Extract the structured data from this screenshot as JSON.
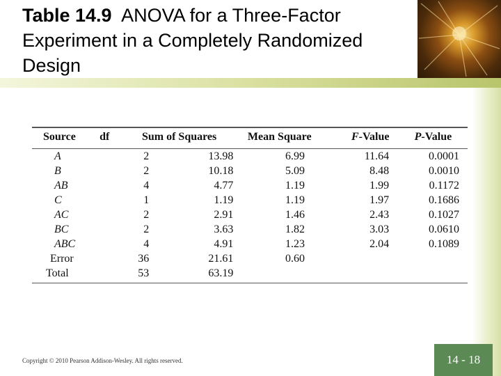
{
  "slide": {
    "title_bold": "Table 14.9",
    "title_rest": "ANOVA for a Three-Factor Experiment in a Completely Randomized Design",
    "copyright": "Copyright © 2010 Pearson Addison-Wesley. All rights reserved.",
    "page_number": "14 - 18"
  },
  "table": {
    "headers": {
      "source": "Source",
      "df": "df",
      "ss": "Sum of Squares",
      "ms": "Mean Square",
      "f_letter": "F",
      "f_rest": "-Value",
      "p_letter": "P",
      "p_rest": "-Value"
    },
    "rows": [
      {
        "source": "A",
        "df": "2",
        "ss": "13.98",
        "ms": "6.99",
        "f": "11.64",
        "p": "0.0001"
      },
      {
        "source": "B",
        "df": "2",
        "ss": "10.18",
        "ms": "5.09",
        "f": "8.48",
        "p": "0.0010"
      },
      {
        "source": "AB",
        "df": "4",
        "ss": "4.77",
        "ms": "1.19",
        "f": "1.99",
        "p": "0.1172"
      },
      {
        "source": "C",
        "df": "1",
        "ss": "1.19",
        "ms": "1.19",
        "f": "1.97",
        "p": "0.1686"
      },
      {
        "source": "AC",
        "df": "2",
        "ss": "2.91",
        "ms": "1.46",
        "f": "2.43",
        "p": "0.1027"
      },
      {
        "source": "BC",
        "df": "2",
        "ss": "3.63",
        "ms": "1.82",
        "f": "3.03",
        "p": "0.0610"
      },
      {
        "source": "ABC",
        "df": "4",
        "ss": "4.91",
        "ms": "1.23",
        "f": "2.04",
        "p": "0.1089"
      },
      {
        "source": "Error",
        "df": "36",
        "ss": "21.61",
        "ms": "0.60",
        "f": "",
        "p": ""
      },
      {
        "source": "Total",
        "df": "53",
        "ss": "63.19",
        "ms": "",
        "f": "",
        "p": ""
      }
    ]
  },
  "colors": {
    "page_box": "#5b8a55",
    "title_bar": "#c9d27f"
  }
}
